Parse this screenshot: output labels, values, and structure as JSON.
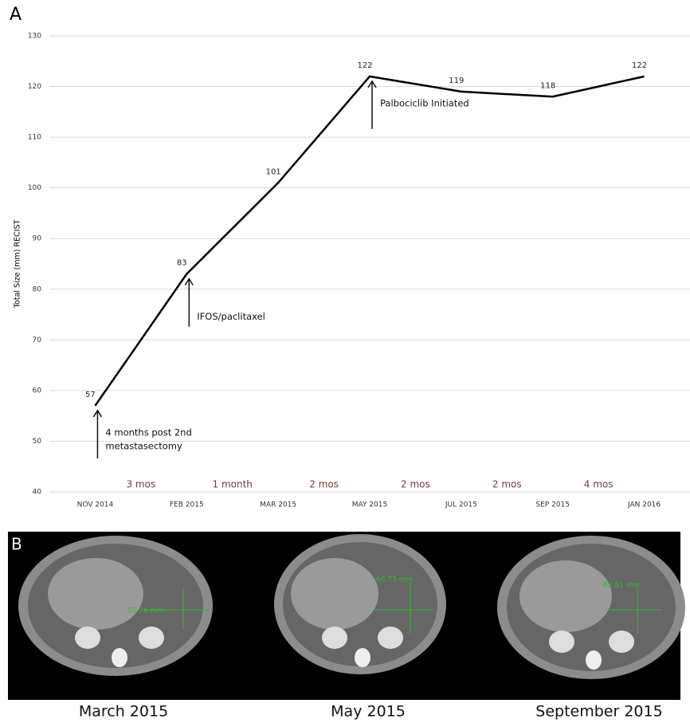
{
  "panel_labels": [
    "A",
    "B"
  ],
  "chart_data": {
    "type": "line",
    "y_label": "Total Size (mm) RECIST",
    "categories": [
      "NOV 2014",
      "FEB 2015",
      "MAR 2015",
      "MAY 2015",
      "JUL 2015",
      "SEP 2015",
      "JAN 2016"
    ],
    "values": [
      57,
      83,
      101,
      122,
      119,
      118,
      122
    ],
    "color": "#000000",
    "ylim": [
      40,
      130
    ],
    "yticks": [
      40,
      50,
      60,
      70,
      80,
      90,
      100,
      110,
      120,
      130
    ],
    "grid": true,
    "intervals": [
      "3 mos",
      "1 month",
      "2 mos",
      "2 mos",
      "2 mos",
      "4 mos"
    ],
    "annotations": [
      [
        "4 months post 2nd",
        "metastasectomy"
      ],
      [
        "IFOS/paclitaxel"
      ],
      [
        "Palbociclib Initiated"
      ]
    ]
  },
  "images": {
    "captions": [
      "March 2015",
      "May 2015",
      "September 2015"
    ],
    "measurements": [
      "55.76 mm",
      "66.73 mm",
      "62.81 mm"
    ]
  }
}
